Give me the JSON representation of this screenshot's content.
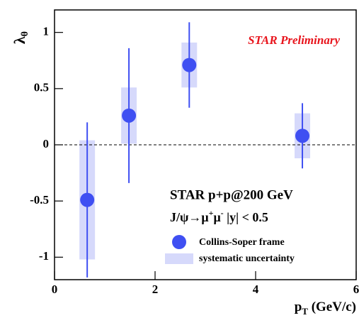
{
  "chart_data": {
    "type": "scatter",
    "x_label": [
      "p",
      "T",
      " (GeV/c)"
    ],
    "y_label": [
      "λ",
      "θ"
    ],
    "annotation": "STAR Preliminary",
    "system_label": "STAR p+p@200 GeV",
    "selection_label": [
      "J/ψ→μ",
      "+",
      "μ",
      "-",
      "  |y| < 0.5"
    ],
    "x": [
      0.65,
      1.48,
      2.68,
      4.93
    ],
    "series": [
      {
        "name": "Collins-Soper frame",
        "color": "#3f4ff2",
        "values": [
          -0.49,
          0.26,
          0.71,
          0.08
        ],
        "errors": [
          0.69,
          0.6,
          0.38,
          0.29
        ]
      }
    ],
    "systematic": {
      "name": "systematic uncertainty",
      "color": "#d6d9fb",
      "errors": [
        0.53,
        0.25,
        0.2,
        0.2
      ]
    },
    "reference_line": 0,
    "xlim": [
      0,
      6
    ],
    "xticks": [
      0,
      2,
      4,
      6
    ],
    "ylim": [
      -1.2,
      1.2
    ],
    "yticks": [
      -1,
      -0.5,
      0,
      0.5,
      1
    ]
  }
}
